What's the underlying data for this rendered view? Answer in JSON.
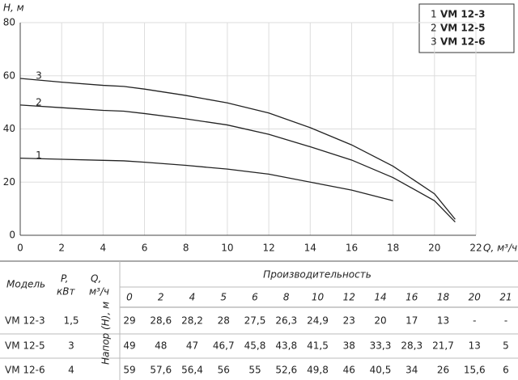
{
  "chart_data": {
    "type": "line",
    "y_label": "H, м",
    "x_label": "Q, м³/ч",
    "x": [
      0,
      2,
      4,
      5,
      6,
      8,
      10,
      12,
      14,
      16,
      18,
      20,
      21
    ],
    "xlim": [
      0,
      22
    ],
    "xticks": [
      0,
      2,
      4,
      6,
      8,
      10,
      12,
      14,
      16,
      18,
      20,
      22
    ],
    "ylim": [
      0,
      80
    ],
    "yticks": [
      0,
      20,
      40,
      60,
      80
    ],
    "grid": true,
    "legend": "top-right",
    "series": [
      {
        "name": "VM 12-3",
        "label": "1",
        "color": "#222222",
        "values": [
          29,
          28.6,
          28.2,
          28,
          27.5,
          26.3,
          24.9,
          23,
          20,
          17,
          13,
          null,
          null
        ],
        "value_labels": [
          "29",
          "28,6",
          "28,2",
          "28",
          "27,5",
          "26,3",
          "24,9",
          "23",
          "20",
          "17",
          "13",
          "-",
          "-"
        ]
      },
      {
        "name": "VM 12-5",
        "label": "2",
        "color": "#222222",
        "values": [
          49,
          48,
          47,
          46.7,
          45.8,
          43.8,
          41.5,
          38,
          33.3,
          28.3,
          21.7,
          13,
          5
        ],
        "value_labels": [
          "49",
          "48",
          "47",
          "46,7",
          "45,8",
          "43,8",
          "41,5",
          "38",
          "33,3",
          "28,3",
          "21,7",
          "13",
          "5"
        ]
      },
      {
        "name": "VM 12-6",
        "label": "3",
        "color": "#222222",
        "values": [
          59,
          57.6,
          56.4,
          56,
          55,
          52.6,
          49.8,
          46,
          40.5,
          34,
          26,
          15.6,
          6
        ],
        "value_labels": [
          "59",
          "57,6",
          "56,4",
          "56",
          "55",
          "52,6",
          "49,8",
          "46",
          "40,5",
          "34",
          "26",
          "15,6",
          "6"
        ]
      }
    ]
  },
  "table": {
    "model": "Модель",
    "power": [
      "P,",
      "кВт"
    ],
    "flow": [
      "Q,",
      "м³/ч"
    ],
    "performance": "Производительность",
    "head": "Напор (Н), м",
    "power_values": [
      "1,5",
      "3",
      "4"
    ]
  }
}
